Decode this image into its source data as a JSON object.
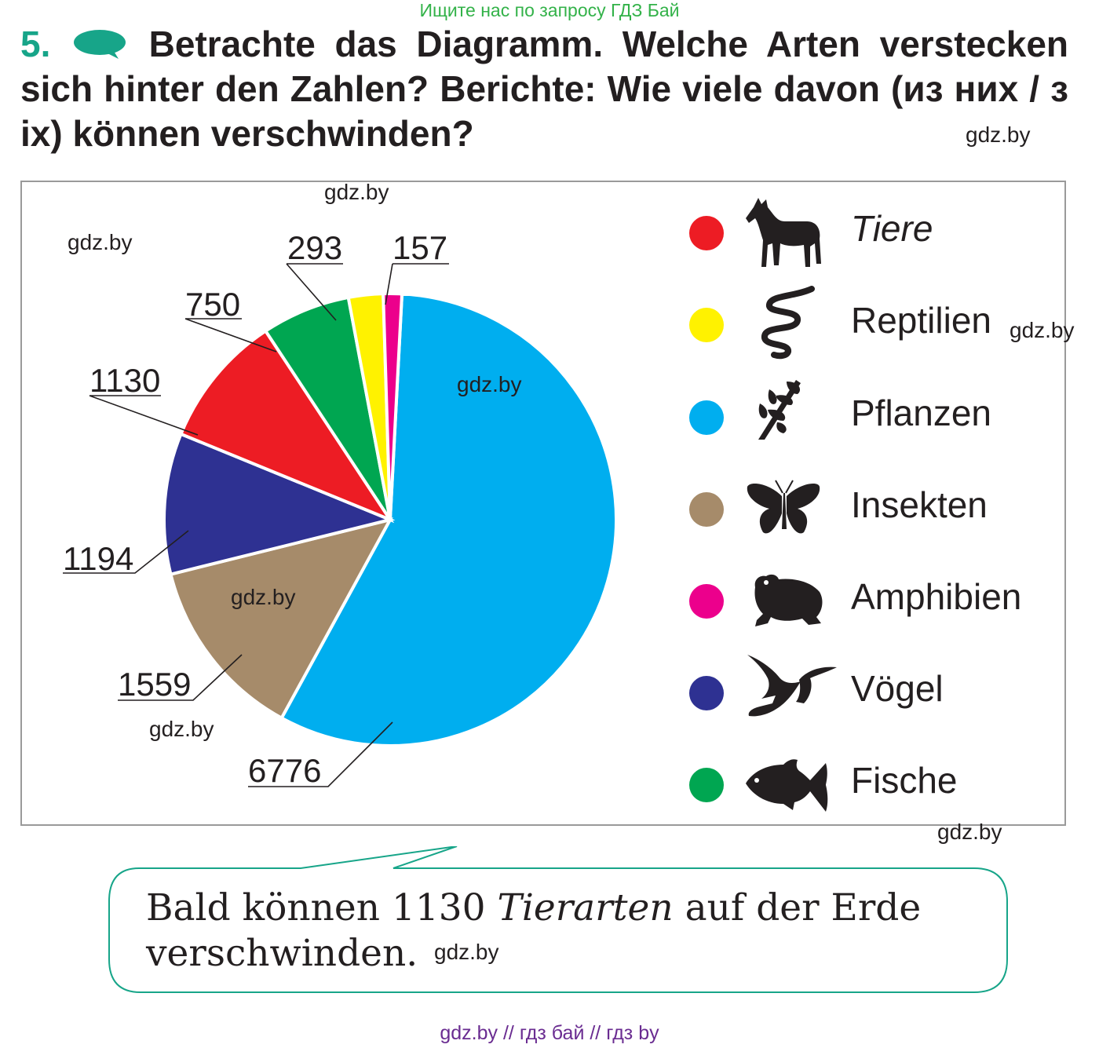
{
  "header": {
    "banner": "Ищите нас по запросу ГДЗ Бай",
    "task_number": "5.",
    "task_text": "Betrachte das Diagramm. Welche Arten verstecken sich hinter den Zahlen? Berichte: Wie viele davon (из них / з ix) können verschwinden?"
  },
  "watermark": "gdz.by",
  "chart_data": {
    "type": "pie",
    "title": "",
    "categories": [
      "Pflanzen",
      "Insekten",
      "Vögel",
      "Tiere",
      "Fische",
      "Reptilien",
      "Amphibien"
    ],
    "values": [
      6776,
      1559,
      1194,
      1130,
      750,
      293,
      157
    ],
    "colors": [
      "#00aeef",
      "#a68b6a",
      "#2e3192",
      "#ed1c24",
      "#00a651",
      "#fff200",
      "#ec008c"
    ],
    "legend": [
      {
        "label": "Tiere",
        "color": "#ed1c24",
        "icon": "horse-icon",
        "italic": true
      },
      {
        "label": "Reptilien",
        "color": "#fff200",
        "icon": "snake-icon",
        "italic": false
      },
      {
        "label": "Pflanzen",
        "color": "#00aeef",
        "icon": "leaf-icon",
        "italic": false
      },
      {
        "label": "Insekten",
        "color": "#a68b6a",
        "icon": "butterfly-icon",
        "italic": false
      },
      {
        "label": "Amphibien",
        "color": "#ec008c",
        "icon": "frog-icon",
        "italic": false
      },
      {
        "label": "Vögel",
        "color": "#2e3192",
        "icon": "birds-icon",
        "italic": false
      },
      {
        "label": "Fische",
        "color": "#00a651",
        "icon": "fish-icon",
        "italic": false
      }
    ],
    "legend_position": "right"
  },
  "callout": {
    "text_before": "Bald können 1130 ",
    "text_italic": "Tierarten",
    "text_after": " auf der Erde verschwinden."
  },
  "footer": {
    "text": "gdz.by  //  гдз бай  //  гдз by"
  }
}
